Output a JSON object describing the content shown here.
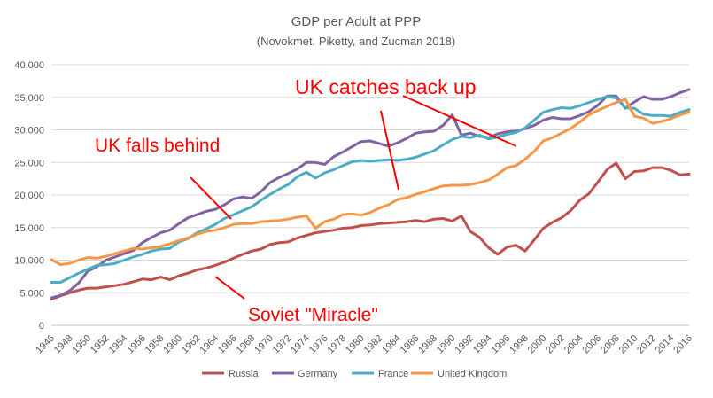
{
  "chart_data": {
    "type": "line",
    "title": "GDP per Adult at PPP",
    "subtitle": "(Novokmet, Piketty, and Zucman 2018)",
    "x": [
      1946,
      1947,
      1948,
      1949,
      1950,
      1951,
      1952,
      1953,
      1954,
      1955,
      1956,
      1957,
      1958,
      1959,
      1960,
      1961,
      1962,
      1963,
      1964,
      1965,
      1966,
      1967,
      1968,
      1969,
      1970,
      1971,
      1972,
      1973,
      1974,
      1975,
      1976,
      1977,
      1978,
      1979,
      1980,
      1981,
      1982,
      1983,
      1984,
      1985,
      1986,
      1987,
      1988,
      1989,
      1990,
      1991,
      1992,
      1993,
      1994,
      1995,
      1996,
      1997,
      1998,
      1999,
      2000,
      2001,
      2002,
      2003,
      2004,
      2005,
      2006,
      2007,
      2008,
      2009,
      2010,
      2011,
      2012,
      2013,
      2014,
      2015,
      2016
    ],
    "x_tick_labels": [
      "1946",
      "1948",
      "1950",
      "1952",
      "1954",
      "1956",
      "1958",
      "1960",
      "1962",
      "1964",
      "1966",
      "1968",
      "1970",
      "1972",
      "1974",
      "1976",
      "1978",
      "1980",
      "1982",
      "1984",
      "1986",
      "1988",
      "1990",
      "1992",
      "1994",
      "1996",
      "1998",
      "2000",
      "2002",
      "2004",
      "2006",
      "2008",
      "2010",
      "2012",
      "2014",
      "2016"
    ],
    "y_tick_labels": [
      "0",
      "5,000",
      "10,000",
      "15,000",
      "20,000",
      "25,000",
      "30,000",
      "35,000",
      "40,000"
    ],
    "ylim": [
      0,
      40000
    ],
    "grid": true,
    "legend_position": "bottom",
    "series": [
      {
        "name": "Russia",
        "color": "#c0504d",
        "values": [
          4000,
          4500,
          5000,
          5400,
          5700,
          5700,
          5900,
          6100,
          6300,
          6700,
          7100,
          7000,
          7400,
          7000,
          7600,
          8000,
          8500,
          8800,
          9200,
          9700,
          10300,
          10900,
          11400,
          11700,
          12400,
          12700,
          12800,
          13400,
          13800,
          14200,
          14400,
          14600,
          14900,
          15000,
          15300,
          15400,
          15600,
          15700,
          15800,
          15900,
          16100,
          15900,
          16300,
          16400,
          16000,
          16800,
          14400,
          13500,
          11900,
          10900,
          12000,
          12300,
          11400,
          13100,
          14900,
          15800,
          16500,
          17600,
          19200,
          20200,
          22000,
          23900,
          24900,
          22500,
          23600,
          23700,
          24200,
          24200,
          23800,
          23100,
          23200
        ]
      },
      {
        "name": "Germany",
        "color": "#8064a2",
        "values": [
          4200,
          4600,
          5300,
          6500,
          8300,
          9000,
          10000,
          10500,
          11000,
          11500,
          12700,
          13500,
          14200,
          14600,
          15600,
          16500,
          17000,
          17500,
          17800,
          18500,
          19400,
          19700,
          19500,
          20500,
          21900,
          22700,
          23300,
          24000,
          25000,
          25000,
          24700,
          25900,
          26600,
          27400,
          28200,
          28300,
          27900,
          27500,
          28000,
          28700,
          29500,
          29700,
          29800,
          30700,
          32300,
          29200,
          29500,
          29000,
          28800,
          29400,
          29700,
          29800,
          30200,
          30700,
          31500,
          31900,
          31700,
          31700,
          32200,
          32800,
          33800,
          35200,
          35200,
          33300,
          34300,
          35100,
          34700,
          34700,
          35100,
          35700,
          36200
        ]
      },
      {
        "name": "France",
        "color": "#4bacc6",
        "values": [
          6600,
          6600,
          7300,
          8000,
          8600,
          9200,
          9300,
          9500,
          10000,
          10500,
          10900,
          11400,
          11700,
          11800,
          12800,
          13300,
          14200,
          14800,
          15500,
          16400,
          17000,
          17600,
          18200,
          19200,
          20100,
          20900,
          21600,
          22800,
          23500,
          22600,
          23400,
          23900,
          24500,
          25100,
          25300,
          25200,
          25300,
          25400,
          25300,
          25500,
          25800,
          26300,
          26800,
          27700,
          28500,
          29000,
          28800,
          29200,
          28600,
          28900,
          29300,
          29600,
          30300,
          31500,
          32700,
          33100,
          33400,
          33300,
          33700,
          34200,
          34700,
          35100,
          34900,
          33400,
          33300,
          32400,
          32200,
          32200,
          32100,
          32700,
          33100
        ]
      },
      {
        "name": "United Kingdom",
        "color": "#f79646",
        "values": [
          10100,
          9300,
          9500,
          10000,
          10400,
          10300,
          10600,
          11000,
          11400,
          11800,
          11700,
          11900,
          12100,
          12500,
          13000,
          13400,
          14000,
          14400,
          14600,
          15000,
          15500,
          15600,
          15600,
          15900,
          16000,
          16100,
          16300,
          16600,
          16800,
          14900,
          15900,
          16300,
          17000,
          17100,
          16900,
          17300,
          18000,
          18500,
          19300,
          19600,
          20100,
          20500,
          21000,
          21400,
          21500,
          21500,
          21600,
          21900,
          22300,
          23200,
          24200,
          24500,
          25500,
          26700,
          28300,
          28800,
          29500,
          30200,
          31200,
          32300,
          33000,
          33600,
          34200,
          34700,
          32100,
          31800,
          31000,
          31300,
          31700,
          32300,
          32700
        ]
      }
    ],
    "annotations": [
      {
        "text": "UK catches back up",
        "color": "#ff0000"
      },
      {
        "text": "UK falls behind",
        "color": "#ff0000"
      },
      {
        "text": "Soviet \"Miracle\"",
        "color": "#ff0000"
      }
    ]
  }
}
